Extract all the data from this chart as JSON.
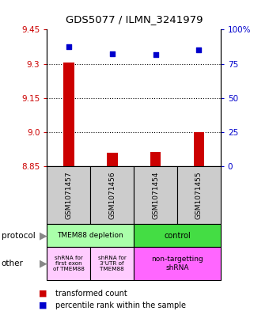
{
  "title": "GDS5077 / ILMN_3241979",
  "samples": [
    "GSM1071457",
    "GSM1071456",
    "GSM1071454",
    "GSM1071455"
  ],
  "bar_values": [
    9.305,
    8.91,
    8.915,
    9.0
  ],
  "bar_bottom": 8.85,
  "dot_values": [
    9.375,
    9.345,
    9.34,
    9.36
  ],
  "ylim": [
    8.85,
    9.45
  ],
  "yticks_left": [
    8.85,
    9.0,
    9.15,
    9.3,
    9.45
  ],
  "yticks_right": [
    0,
    25,
    50,
    75,
    100
  ],
  "yticks_right_labels": [
    "0",
    "25",
    "50",
    "75",
    "100%"
  ],
  "hlines": [
    9.0,
    9.15,
    9.3
  ],
  "bar_color": "#cc0000",
  "dot_color": "#0000cc",
  "protocol_colors": [
    "#aaffaa",
    "#44dd44"
  ],
  "other_colors_left": "#ffccff",
  "other_color_right": "#ff66ff",
  "legend_bar_label": "transformed count",
  "legend_dot_label": "percentile rank within the sample"
}
